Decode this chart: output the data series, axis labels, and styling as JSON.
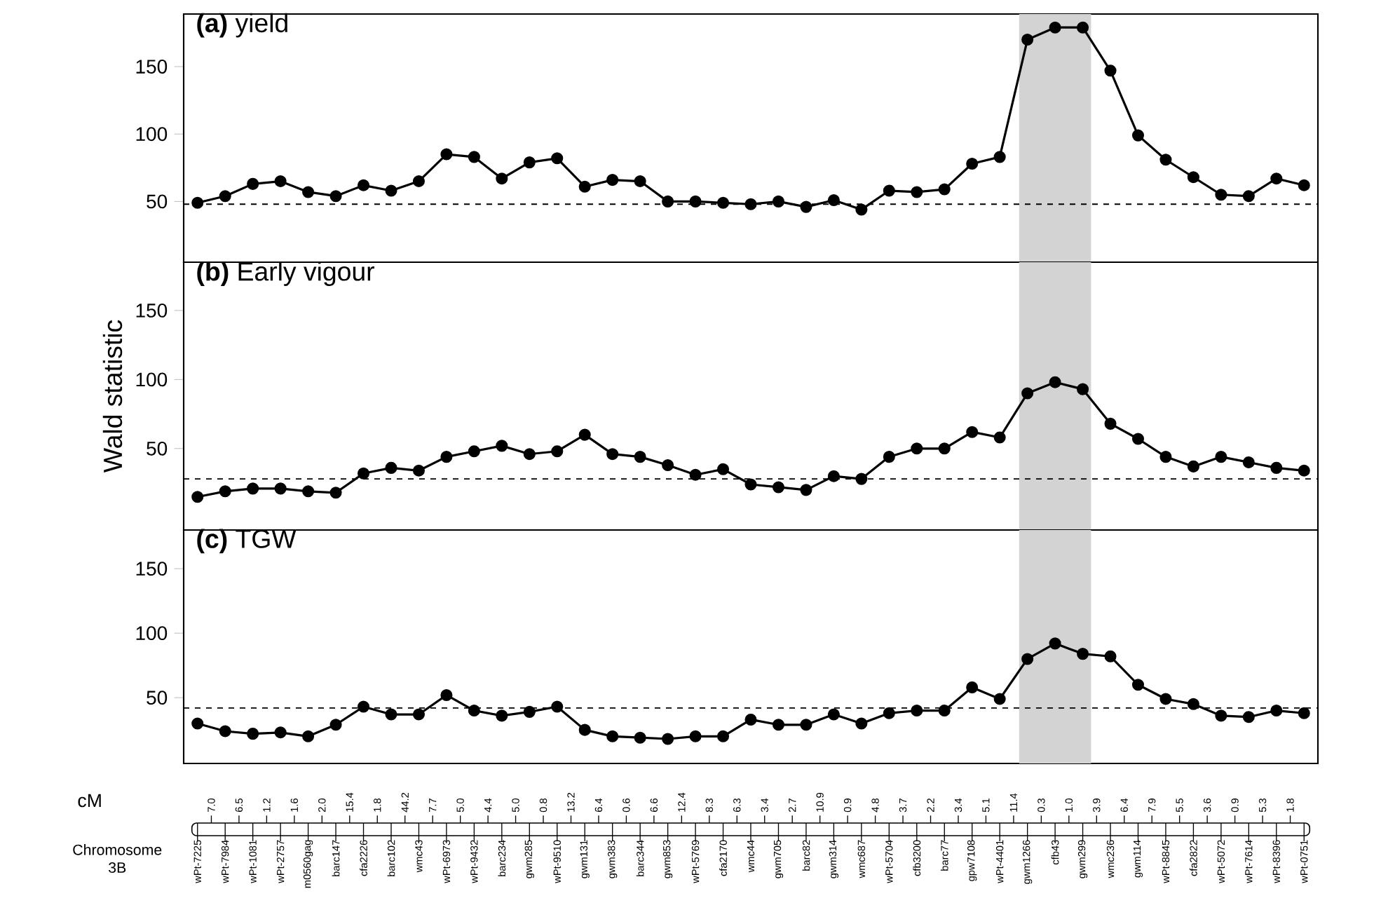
{
  "chart_data": [
    {
      "type": "line",
      "title": "**(a)** yield",
      "color": "#000000",
      "marker": "circle",
      "categories": [
        "wPt-7225",
        "wPt-7984",
        "wPt-1081",
        "wPt-2757",
        "m0560gag",
        "barc147",
        "cfa2226",
        "barc102",
        "wmc43",
        "wPt-6973",
        "wPt-9432",
        "barc234",
        "gwm285",
        "wPt-9510",
        "gwm131",
        "gwm383",
        "barc344",
        "gwm853",
        "wPt-5769",
        "cfa2170",
        "wmc44",
        "gwm705",
        "barc82",
        "gwm314",
        "wmc687",
        "wPt-5704",
        "cfb3200",
        "barc77",
        "gpw7108",
        "wPt-4401",
        "gwm1266",
        "cfb43",
        "gwm299",
        "wmc236",
        "gwm114",
        "wPt-8845",
        "cfa2822",
        "wPt-5072",
        "wPt-7614",
        "wPt-8396",
        "wPt-0751"
      ],
      "values": [
        49,
        54,
        63,
        65,
        57,
        54,
        62,
        58,
        65,
        85,
        83,
        67,
        79,
        82,
        61,
        66,
        65,
        50,
        50,
        49,
        48,
        50,
        46,
        51,
        44,
        58,
        57,
        59,
        78,
        83,
        170,
        179,
        179,
        147,
        99,
        81,
        68,
        55,
        54,
        67,
        62
      ],
      "ylim": [
        5,
        189
      ],
      "yticks": [
        50,
        100,
        150
      ],
      "tick_labels": "y",
      "ref_lines": [
        {
          "axis": "y",
          "value": 48,
          "line_style": "dashed",
          "color": "#000000"
        }
      ],
      "bands": [
        {
          "axis": "x",
          "from": "gwm1266",
          "to": "gwm299",
          "color": "#d3d3d3"
        }
      ]
    },
    {
      "type": "line",
      "title": "**(b)** Early vigour",
      "ylabel": "Wald statistic",
      "color": "#000000",
      "marker": "circle",
      "categories": [
        "wPt-7225",
        "wPt-7984",
        "wPt-1081",
        "wPt-2757",
        "m0560gag",
        "barc147",
        "cfa2226",
        "barc102",
        "wmc43",
        "wPt-6973",
        "wPt-9432",
        "barc234",
        "gwm285",
        "wPt-9510",
        "gwm131",
        "gwm383",
        "barc344",
        "gwm853",
        "wPt-5769",
        "cfa2170",
        "wmc44",
        "gwm705",
        "barc82",
        "gwm314",
        "wmc687",
        "wPt-5704",
        "cfb3200",
        "barc77",
        "gpw7108",
        "wPt-4401",
        "gwm1266",
        "cfb43",
        "gwm299",
        "wmc236",
        "gwm114",
        "wPt-8845",
        "cfa2822",
        "wPt-5072",
        "wPt-7614",
        "wPt-8396",
        "wPt-0751"
      ],
      "values": [
        15,
        19,
        21,
        21,
        19,
        18,
        32,
        36,
        34,
        44,
        48,
        52,
        46,
        48,
        60,
        46,
        44,
        38,
        31,
        35,
        24,
        22,
        20,
        30,
        28,
        44,
        50,
        50,
        62,
        58,
        90,
        98,
        93,
        68,
        57,
        44,
        37,
        44,
        40,
        36,
        34
      ],
      "ylim": [
        -9,
        185
      ],
      "yticks": [
        50,
        100,
        150
      ],
      "tick_labels": "y",
      "ref_lines": [
        {
          "axis": "y",
          "value": 28,
          "line_style": "dashed",
          "color": "#000000"
        }
      ],
      "bands": [
        {
          "axis": "x",
          "from": "gwm1266",
          "to": "gwm299",
          "color": "#d3d3d3"
        }
      ]
    },
    {
      "type": "line",
      "title": "**(c)** TGW",
      "color": "#000000",
      "marker": "circle",
      "categories": [
        "wPt-7225",
        "wPt-7984",
        "wPt-1081",
        "wPt-2757",
        "m0560gag",
        "barc147",
        "cfa2226",
        "barc102",
        "wmc43",
        "wPt-6973",
        "wPt-9432",
        "barc234",
        "gwm285",
        "wPt-9510",
        "gwm131",
        "gwm383",
        "barc344",
        "gwm853",
        "wPt-5769",
        "cfa2170",
        "wmc44",
        "gwm705",
        "barc82",
        "gwm314",
        "wmc687",
        "wPt-5704",
        "cfb3200",
        "barc77",
        "gpw7108",
        "wPt-4401",
        "gwm1266",
        "cfb43",
        "gwm299",
        "wmc236",
        "gwm114",
        "wPt-8845",
        "cfa2822",
        "wPt-5072",
        "wPt-7614",
        "wPt-8396",
        "wPt-0751"
      ],
      "values": [
        30,
        24,
        22,
        23,
        20,
        29,
        43,
        37,
        37,
        52,
        40,
        36,
        39,
        43,
        25,
        20,
        19,
        18,
        20,
        20,
        33,
        29,
        29,
        37,
        30,
        38,
        40,
        40,
        58,
        49,
        80,
        92,
        84,
        82,
        60,
        49,
        45,
        36,
        35,
        40,
        38
      ],
      "ylim": [
        -1,
        180
      ],
      "yticks": [
        50,
        100,
        150
      ],
      "tick_labels": "y",
      "ref_lines": [
        {
          "axis": "y",
          "value": 42,
          "line_style": "dashed",
          "color": "#000000"
        }
      ],
      "bands": [
        {
          "axis": "x",
          "from": "gwm1266",
          "to": "gwm299",
          "color": "#d3d3d3"
        }
      ]
    },
    {
      "type": "other",
      "xlabel": "Chromosome 3B",
      "categories": [
        "wPt-7225",
        "wPt-7984",
        "wPt-1081",
        "wPt-2757",
        "m0560gag",
        "barc147",
        "cfa2226",
        "barc102",
        "wmc43",
        "wPt-6973",
        "wPt-9432",
        "barc234",
        "gwm285",
        "wPt-9510",
        "gwm131",
        "gwm383",
        "barc344",
        "gwm853",
        "wPt-5769",
        "cfa2170",
        "wmc44",
        "gwm705",
        "barc82",
        "gwm314",
        "wmc687",
        "wPt-5704",
        "cfb3200",
        "barc77",
        "gpw7108",
        "wPt-4401",
        "gwm1266",
        "cfb43",
        "gwm299",
        "wmc236",
        "gwm114",
        "wPt-8845",
        "cfa2822",
        "wPt-5072",
        "wPt-7614",
        "wPt-8396",
        "wPt-0751"
      ],
      "annotations": [
        "cM",
        "7.0",
        "6.5",
        "1.2",
        "1.6",
        "2.0",
        "15.4",
        "1.8",
        "44.2",
        "7.7",
        "5.0",
        "4.4",
        "5.0",
        "0.8",
        "13.2",
        "6.4",
        "0.6",
        "6.6",
        "12.4",
        "8.3",
        "6.3",
        "3.4",
        "2.7",
        "10.9",
        "0.9",
        "4.8",
        "3.7",
        "2.2",
        "3.4",
        "5.1",
        "11.4",
        "0.3",
        "1.0",
        "3.9",
        "6.4",
        "7.9",
        "5.5",
        "3.6",
        "0.9",
        "5.3",
        "1.8"
      ]
    }
  ]
}
